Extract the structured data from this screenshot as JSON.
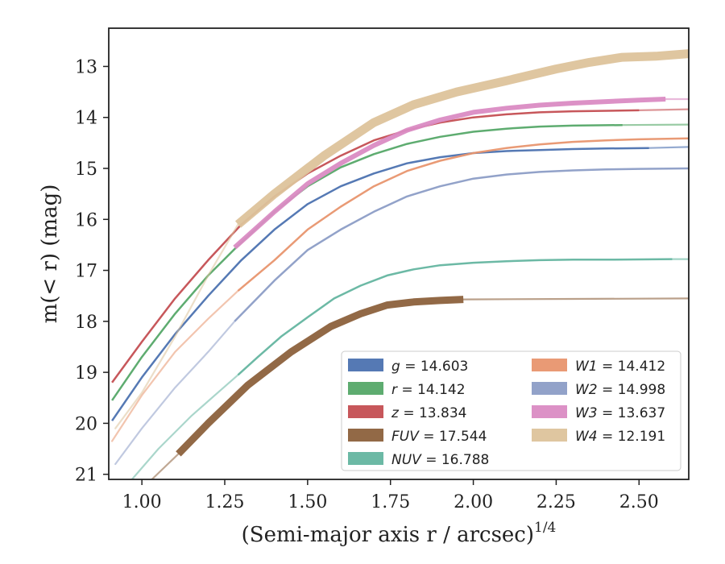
{
  "chart_data": {
    "type": "line",
    "xlabel": "(Semi-major axis r / arcsec)",
    "xlabel_sup": "1/4",
    "ylabel": "m(< r) (mag)",
    "xlim": [
      0.9,
      2.65
    ],
    "ylim": [
      21.1,
      12.25
    ],
    "y_inverted": true,
    "grid": false,
    "legend_position": "lower-right",
    "xticks": [
      1.0,
      1.25,
      1.5,
      1.75,
      2.0,
      2.25,
      2.5
    ],
    "xtick_labels": [
      "1.00",
      "1.25",
      "1.50",
      "1.75",
      "2.00",
      "2.25",
      "2.50"
    ],
    "yticks": [
      13,
      14,
      15,
      16,
      17,
      18,
      19,
      20,
      21
    ],
    "ytick_labels": [
      "13",
      "14",
      "15",
      "16",
      "17",
      "18",
      "19",
      "20",
      "21"
    ],
    "series": [
      {
        "name": "g = 14.603",
        "label_var": "g",
        "label_val": "14.603",
        "color": "#4C72B0",
        "x": [
          0.91,
          1.0,
          1.1,
          1.2,
          1.3,
          1.4,
          1.5,
          1.6,
          1.7,
          1.8,
          1.9,
          2.0,
          2.1,
          2.2,
          2.3,
          2.4,
          2.53
        ],
        "y": [
          19.95,
          19.1,
          18.25,
          17.5,
          16.8,
          16.2,
          15.7,
          15.35,
          15.1,
          14.9,
          14.78,
          14.7,
          14.66,
          14.64,
          14.62,
          14.61,
          14.6
        ],
        "ext_x": [
          2.53,
          2.65
        ],
        "ext_y": [
          14.6,
          14.58
        ],
        "width": 2.5
      },
      {
        "name": "r = 14.142",
        "label_var": "r",
        "label_val": "14.142",
        "color": "#55A868",
        "x": [
          0.91,
          1.0,
          1.1,
          1.2,
          1.3,
          1.4,
          1.5,
          1.6,
          1.7,
          1.8,
          1.9,
          2.0,
          2.1,
          2.2,
          2.3,
          2.45
        ],
        "y": [
          19.55,
          18.7,
          17.85,
          17.1,
          16.45,
          15.85,
          15.35,
          14.98,
          14.72,
          14.52,
          14.38,
          14.28,
          14.22,
          14.18,
          14.16,
          14.15
        ],
        "ext_x": [
          2.45,
          2.65
        ],
        "ext_y": [
          14.15,
          14.14
        ],
        "width": 2.5
      },
      {
        "name": "z = 13.834",
        "label_var": "z",
        "label_val": "13.834",
        "color": "#C44E52",
        "x": [
          0.91,
          1.0,
          1.1,
          1.2,
          1.3,
          1.4,
          1.5,
          1.6,
          1.7,
          1.8,
          1.9,
          2.0,
          2.1,
          2.2,
          2.3,
          2.5
        ],
        "y": [
          19.2,
          18.4,
          17.55,
          16.8,
          16.1,
          15.55,
          15.1,
          14.75,
          14.45,
          14.25,
          14.1,
          14.0,
          13.94,
          13.9,
          13.88,
          13.86
        ],
        "ext_x": [
          2.5,
          2.65
        ],
        "ext_y": [
          13.86,
          13.84
        ],
        "width": 2.5
      },
      {
        "name": "FUV = 17.544",
        "label_var": "FUV",
        "label_val": "17.544",
        "color": "#8C613C",
        "x": [
          1.11,
          1.2,
          1.32,
          1.45,
          1.57,
          1.66,
          1.74,
          1.82,
          1.9,
          1.97
        ],
        "y": [
          20.6,
          20.0,
          19.25,
          18.6,
          18.1,
          17.85,
          17.68,
          17.62,
          17.59,
          17.57
        ],
        "ext_x": [
          1.97,
          2.3,
          2.65
        ],
        "ext_y": [
          17.57,
          17.56,
          17.55
        ],
        "pre_x": [
          1.03,
          1.11
        ],
        "pre_y": [
          21.1,
          20.6
        ],
        "width": 9
      },
      {
        "name": "NUV = 16.788",
        "label_var": "NUV",
        "label_val": "16.788",
        "color": "#64B5A0",
        "x": [
          1.29,
          1.35,
          1.42,
          1.5,
          1.58,
          1.66,
          1.74,
          1.82,
          1.9,
          2.0,
          2.1,
          2.2,
          2.3,
          2.4,
          2.6
        ],
        "y": [
          19.05,
          18.7,
          18.3,
          17.92,
          17.55,
          17.3,
          17.1,
          16.98,
          16.9,
          16.85,
          16.82,
          16.8,
          16.79,
          16.79,
          16.78
        ],
        "ext_x": [
          2.6,
          2.65
        ],
        "ext_y": [
          16.78,
          16.78
        ],
        "pre_x": [
          0.97,
          1.05,
          1.15,
          1.22,
          1.29
        ],
        "pre_y": [
          21.1,
          20.5,
          19.85,
          19.45,
          19.05
        ],
        "width": 2.5
      },
      {
        "name": "W1 = 14.412",
        "label_var": "W1",
        "label_val": "14.412",
        "color": "#E8956E",
        "x": [
          1.29,
          1.4,
          1.5,
          1.6,
          1.7,
          1.8,
          1.9,
          2.0,
          2.1,
          2.2,
          2.3,
          2.4,
          2.5,
          2.65
        ],
        "y": [
          17.4,
          16.8,
          16.2,
          15.75,
          15.35,
          15.05,
          14.85,
          14.7,
          14.6,
          14.53,
          14.48,
          14.45,
          14.43,
          14.41
        ],
        "pre_x": [
          0.91,
          1.0,
          1.1,
          1.2,
          1.29
        ],
        "pre_y": [
          20.35,
          19.45,
          18.6,
          17.95,
          17.4
        ],
        "width": 2.5
      },
      {
        "name": "W2 = 14.998",
        "label_var": "W2",
        "label_val": "14.998",
        "color": "#8C9DC6",
        "x": [
          1.28,
          1.4,
          1.5,
          1.6,
          1.7,
          1.8,
          1.9,
          2.0,
          2.1,
          2.2,
          2.3,
          2.4,
          2.5,
          2.65
        ],
        "y": [
          18.0,
          17.2,
          16.6,
          16.2,
          15.85,
          15.55,
          15.35,
          15.2,
          15.12,
          15.07,
          15.04,
          15.02,
          15.01,
          15.0
        ],
        "pre_x": [
          0.92,
          1.0,
          1.1,
          1.2,
          1.28
        ],
        "pre_y": [
          20.8,
          20.1,
          19.3,
          18.6,
          18.0
        ],
        "width": 2.5
      },
      {
        "name": "W3 = 13.637",
        "label_var": "W3",
        "label_val": "13.637",
        "color": "#DA8BC3",
        "x": [
          1.28,
          1.4,
          1.5,
          1.6,
          1.7,
          1.8,
          1.9,
          2.0,
          2.1,
          2.2,
          2.3,
          2.4,
          2.5,
          2.58
        ],
        "y": [
          16.55,
          15.85,
          15.3,
          14.9,
          14.55,
          14.25,
          14.05,
          13.9,
          13.82,
          13.76,
          13.72,
          13.69,
          13.66,
          13.64
        ],
        "ext_x": [
          2.58,
          2.65
        ],
        "ext_y": [
          13.64,
          13.64
        ],
        "width": 6
      },
      {
        "name": "W4 = 12.191",
        "label_var": "W4",
        "label_val": "12.191",
        "color": "#DDC39B",
        "x": [
          1.29,
          1.4,
          1.55,
          1.7,
          1.82,
          1.95,
          2.1,
          2.25,
          2.35,
          2.45,
          2.55,
          2.65
        ],
        "y": [
          16.1,
          15.5,
          14.75,
          14.1,
          13.75,
          13.5,
          13.28,
          13.05,
          12.92,
          12.82,
          12.8,
          12.75
        ],
        "pre_x": [
          0.92,
          1.0,
          1.1,
          1.2,
          1.29
        ],
        "pre_y": [
          20.1,
          19.4,
          18.3,
          17.1,
          16.1
        ],
        "width": 11
      }
    ]
  }
}
